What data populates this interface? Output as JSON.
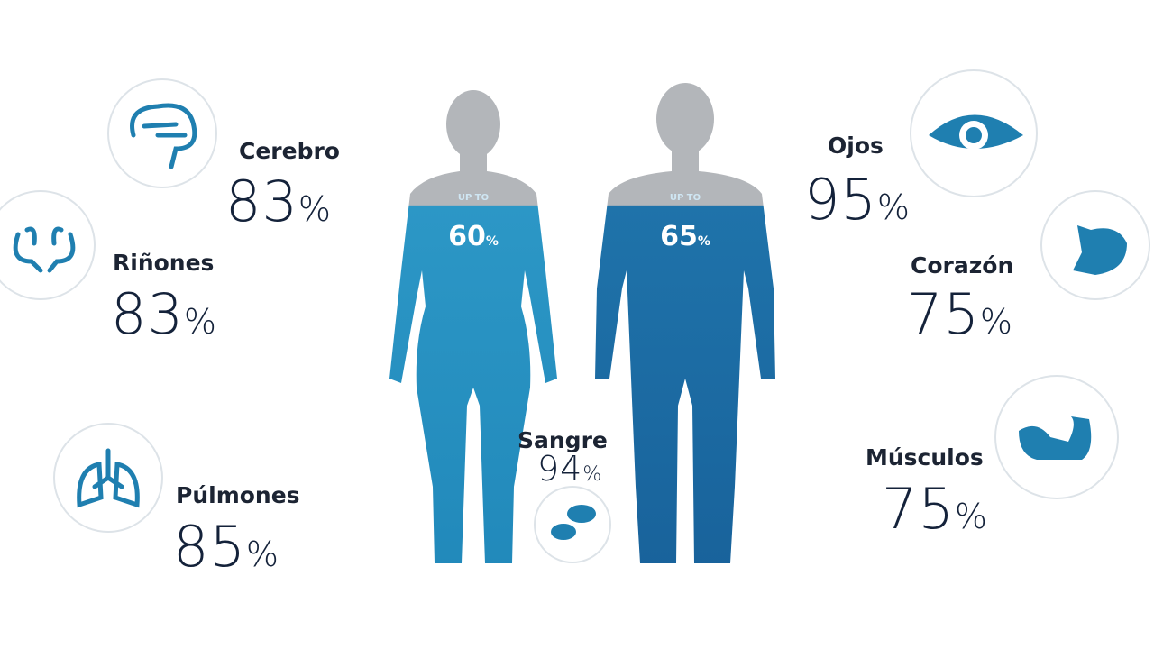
{
  "organs": [
    {
      "name": "Cerebro",
      "value": 83,
      "unit": "%"
    },
    {
      "name": "Riñones",
      "value": 83,
      "unit": "%"
    },
    {
      "name": "Púlmones",
      "value": 85,
      "unit": "%"
    },
    {
      "name": "Ojos",
      "value": 95,
      "unit": "%"
    },
    {
      "name": "Corazón",
      "value": 75,
      "unit": "%"
    },
    {
      "name": "Músculos",
      "value": 75,
      "unit": "%"
    },
    {
      "name": "Sangre",
      "value": 94,
      "unit": "%"
    }
  ],
  "figures": [
    {
      "caption": "UP TO",
      "value": 60,
      "unit": "%"
    },
    {
      "caption": "UP TO",
      "value": 65,
      "unit": "%"
    }
  ]
}
